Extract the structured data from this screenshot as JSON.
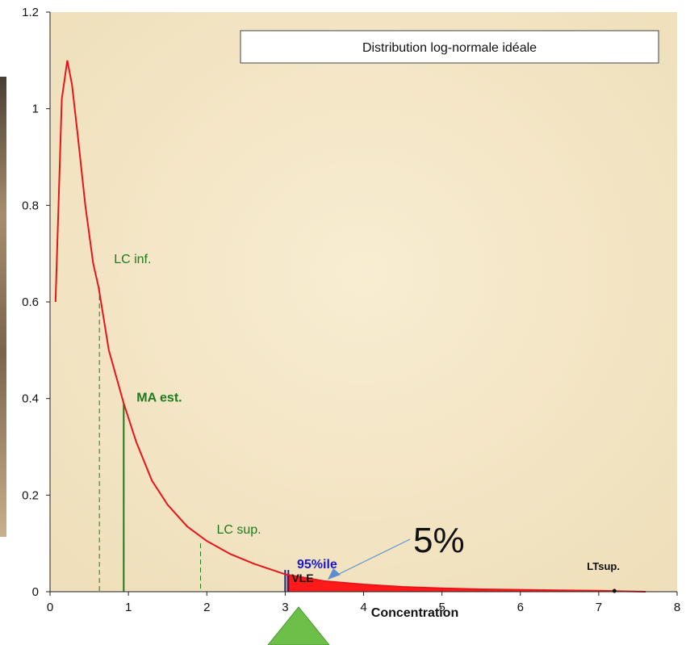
{
  "chart_data": {
    "type": "line",
    "title": "Distribution log-normale idéale",
    "xlabel": "Concentration",
    "ylabel": "",
    "xlim": [
      0,
      8
    ],
    "ylim": [
      0,
      1.2
    ],
    "xticks": [
      0,
      1,
      2,
      3,
      4,
      5,
      6,
      7,
      8
    ],
    "yticks": [
      0,
      0.2,
      0.4,
      0.6,
      0.8,
      1,
      1.2
    ],
    "xtick_labels": [
      "0",
      "1",
      "2",
      "3",
      "4",
      "5",
      "6",
      "7",
      "8"
    ],
    "ytick_labels": [
      "0",
      "0.2",
      "0.4",
      "0.6",
      "0.8",
      "1",
      "1.2"
    ],
    "grid": false,
    "series": [
      {
        "name": "",
        "color": "#e8141c",
        "x": [
          0.07,
          0.15,
          0.22,
          0.28,
          0.35,
          0.45,
          0.55,
          0.62,
          0.75,
          0.94,
          1.1,
          1.3,
          1.5,
          1.75,
          2.0,
          2.3,
          2.6,
          3.0,
          3.5,
          4.0,
          4.5,
          5.0,
          5.5,
          6.0,
          6.5,
          7.0,
          7.6
        ],
        "y": [
          0.6,
          1.02,
          1.1,
          1.05,
          0.95,
          0.8,
          0.68,
          0.63,
          0.5,
          0.39,
          0.31,
          0.23,
          0.18,
          0.135,
          0.105,
          0.078,
          0.058,
          0.036,
          0.022,
          0.015,
          0.01,
          0.007,
          0.005,
          0.004,
          0.003,
          0.002,
          0.0
        ]
      }
    ],
    "vertical_markers": [
      {
        "label": "LC inf.",
        "x": 0.63,
        "y": 0.63,
        "style": "dashed",
        "color": "#1e7a1e"
      },
      {
        "label": "MA est.",
        "x": 0.94,
        "y": 0.39,
        "style": "solid",
        "color": "#1e7a1e"
      },
      {
        "label": "LC sup.",
        "x": 1.92,
        "y": 0.1,
        "style": "dashed",
        "color": "#1e7a1e"
      },
      {
        "label": "VLE",
        "x": 3.02,
        "y": 0.035,
        "style": "solid",
        "color": "#1a2a7a"
      }
    ],
    "annotations": [
      {
        "text": "95%ile",
        "x": 3.55,
        "y": 0.05,
        "color": "#1a1acc"
      },
      {
        "text": "5%",
        "x": 4.9,
        "y": 0.1,
        "color": "#111111"
      },
      {
        "text": "LTsup.",
        "x": 7.2,
        "y": 0.04,
        "color": "#111111"
      }
    ],
    "shaded_tail": {
      "from_x": 3.02,
      "to_x": 7.6,
      "color": "#ff1a1a"
    },
    "upper_tail_point_x": 7.2
  },
  "colors": {
    "plot_background": "#f4e7c7",
    "curve": "#e8141c",
    "marker_green": "#1e7a1e",
    "arrow": "#5b8fd0",
    "bottom_triangle": "#6cc04a"
  }
}
